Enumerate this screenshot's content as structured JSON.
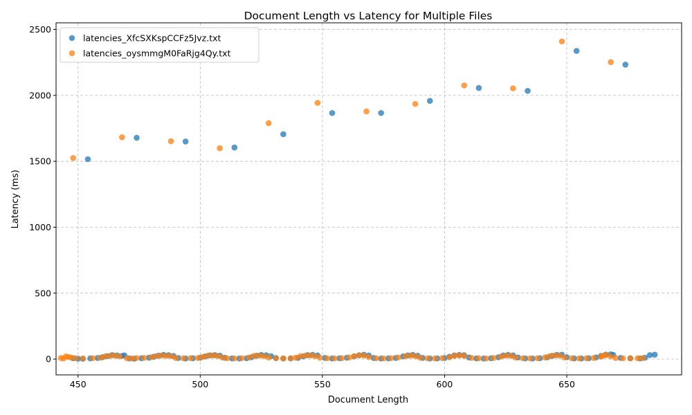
{
  "chart_data": {
    "type": "scatter",
    "title": "Document Length vs Latency for Multiple Files",
    "xlabel": "Document Length",
    "ylabel": "Latency (ms)",
    "xlim": [
      441,
      697
    ],
    "ylim": [
      -120,
      2550
    ],
    "x_ticks": [
      450,
      500,
      550,
      600,
      650
    ],
    "y_ticks": [
      0,
      500,
      1000,
      1500,
      2000,
      2500
    ],
    "grid": true,
    "legend_position": "top-left",
    "series": [
      {
        "name": "latencies_XfcSXKspCCFz5Jvz.txt",
        "color": "#1f77b4",
        "points": [
          [
            454,
            1516
          ],
          [
            474,
            1678
          ],
          [
            494,
            1650
          ],
          [
            514,
            1604
          ],
          [
            534,
            1705
          ],
          [
            554,
            1866
          ],
          [
            574,
            1866
          ],
          [
            594,
            1958
          ],
          [
            614,
            2056
          ],
          [
            634,
            2034
          ],
          [
            654,
            2337
          ],
          [
            674,
            2233
          ],
          [
            448,
            6
          ],
          [
            450,
            3
          ],
          [
            452,
            2
          ],
          [
            455,
            5
          ],
          [
            458,
            8
          ],
          [
            460,
            14
          ],
          [
            462,
            22
          ],
          [
            464,
            30
          ],
          [
            466,
            27
          ],
          [
            468,
            24
          ],
          [
            469,
            28
          ],
          [
            471,
            5
          ],
          [
            473,
            3
          ],
          [
            476,
            6
          ],
          [
            479,
            10
          ],
          [
            481,
            18
          ],
          [
            483,
            26
          ],
          [
            485,
            32
          ],
          [
            487,
            30
          ],
          [
            489,
            24
          ],
          [
            491,
            8
          ],
          [
            494,
            4
          ],
          [
            497,
            6
          ],
          [
            500,
            10
          ],
          [
            502,
            20
          ],
          [
            504,
            28
          ],
          [
            506,
            30
          ],
          [
            508,
            26
          ],
          [
            510,
            10
          ],
          [
            513,
            5
          ],
          [
            516,
            4
          ],
          [
            519,
            6
          ],
          [
            521,
            14
          ],
          [
            523,
            25
          ],
          [
            525,
            31
          ],
          [
            527,
            29
          ],
          [
            529,
            22
          ],
          [
            531,
            8
          ],
          [
            534,
            4
          ],
          [
            537,
            5
          ],
          [
            540,
            9
          ],
          [
            542,
            20
          ],
          [
            544,
            30
          ],
          [
            546,
            32
          ],
          [
            548,
            28
          ],
          [
            551,
            9
          ],
          [
            554,
            4
          ],
          [
            557,
            6
          ],
          [
            560,
            10
          ],
          [
            563,
            20
          ],
          [
            565,
            29
          ],
          [
            567,
            33
          ],
          [
            569,
            27
          ],
          [
            571,
            8
          ],
          [
            574,
            4
          ],
          [
            577,
            5
          ],
          [
            580,
            8
          ],
          [
            583,
            20
          ],
          [
            585,
            28
          ],
          [
            587,
            32
          ],
          [
            589,
            25
          ],
          [
            591,
            9
          ],
          [
            594,
            4
          ],
          [
            597,
            5
          ],
          [
            600,
            8
          ],
          [
            602,
            18
          ],
          [
            604,
            28
          ],
          [
            606,
            32
          ],
          [
            608,
            29
          ],
          [
            610,
            12
          ],
          [
            613,
            5
          ],
          [
            616,
            4
          ],
          [
            619,
            6
          ],
          [
            622,
            14
          ],
          [
            624,
            27
          ],
          [
            626,
            32
          ],
          [
            628,
            28
          ],
          [
            630,
            12
          ],
          [
            633,
            5
          ],
          [
            636,
            4
          ],
          [
            639,
            6
          ],
          [
            642,
            13
          ],
          [
            644,
            24
          ],
          [
            646,
            32
          ],
          [
            648,
            33
          ],
          [
            650,
            14
          ],
          [
            653,
            5
          ],
          [
            656,
            4
          ],
          [
            659,
            6
          ],
          [
            662,
            12
          ],
          [
            664,
            24
          ],
          [
            666,
            34
          ],
          [
            668,
            36
          ],
          [
            669,
            32
          ],
          [
            672,
            9
          ],
          [
            676,
            6
          ],
          [
            680,
            5
          ],
          [
            682,
            10
          ],
          [
            684,
            30
          ],
          [
            686,
            33
          ]
        ]
      },
      {
        "name": "latencies_oysmmgM0FaRjg4Qy.txt",
        "color": "#ff7f0e",
        "points": [
          [
            448,
            1525
          ],
          [
            468,
            1682
          ],
          [
            488,
            1652
          ],
          [
            508,
            1599
          ],
          [
            528,
            1789
          ],
          [
            548,
            1943
          ],
          [
            568,
            1878
          ],
          [
            588,
            1935
          ],
          [
            608,
            2075
          ],
          [
            628,
            2053
          ],
          [
            648,
            2409
          ],
          [
            668,
            2252
          ],
          [
            443,
            8
          ],
          [
            444,
            4
          ],
          [
            445,
            20
          ],
          [
            446,
            16
          ],
          [
            447,
            12
          ],
          [
            449,
            6
          ],
          [
            452,
            4
          ],
          [
            456,
            7
          ],
          [
            459,
            10
          ],
          [
            461,
            20
          ],
          [
            463,
            24
          ],
          [
            465,
            26
          ],
          [
            467,
            20
          ],
          [
            470,
            6
          ],
          [
            472,
            5
          ],
          [
            474,
            8
          ],
          [
            477,
            9
          ],
          [
            480,
            14
          ],
          [
            482,
            22
          ],
          [
            484,
            26
          ],
          [
            486,
            24
          ],
          [
            488,
            22
          ],
          [
            490,
            8
          ],
          [
            493,
            6
          ],
          [
            496,
            7
          ],
          [
            499,
            8
          ],
          [
            501,
            16
          ],
          [
            503,
            25
          ],
          [
            505,
            27
          ],
          [
            507,
            24
          ],
          [
            509,
            12
          ],
          [
            511,
            6
          ],
          [
            514,
            5
          ],
          [
            517,
            7
          ],
          [
            520,
            12
          ],
          [
            522,
            24
          ],
          [
            524,
            26
          ],
          [
            526,
            22
          ],
          [
            528,
            12
          ],
          [
            531,
            6
          ],
          [
            534,
            5
          ],
          [
            537,
            6
          ],
          [
            539,
            10
          ],
          [
            541,
            22
          ],
          [
            543,
            26
          ],
          [
            545,
            27
          ],
          [
            547,
            22
          ],
          [
            549,
            10
          ],
          [
            552,
            6
          ],
          [
            555,
            5
          ],
          [
            558,
            7
          ],
          [
            561,
            12
          ],
          [
            563,
            22
          ],
          [
            565,
            27
          ],
          [
            567,
            26
          ],
          [
            569,
            15
          ],
          [
            572,
            6
          ],
          [
            575,
            5
          ],
          [
            578,
            7
          ],
          [
            581,
            12
          ],
          [
            584,
            22
          ],
          [
            586,
            26
          ],
          [
            588,
            22
          ],
          [
            590,
            10
          ],
          [
            593,
            6
          ],
          [
            596,
            5
          ],
          [
            599,
            7
          ],
          [
            602,
            14
          ],
          [
            604,
            24
          ],
          [
            606,
            27
          ],
          [
            608,
            24
          ],
          [
            611,
            9
          ],
          [
            614,
            6
          ],
          [
            617,
            5
          ],
          [
            620,
            8
          ],
          [
            623,
            18
          ],
          [
            625,
            26
          ],
          [
            627,
            24
          ],
          [
            629,
            12
          ],
          [
            632,
            6
          ],
          [
            635,
            5
          ],
          [
            638,
            7
          ],
          [
            641,
            12
          ],
          [
            643,
            22
          ],
          [
            645,
            27
          ],
          [
            647,
            25
          ],
          [
            649,
            12
          ],
          [
            652,
            6
          ],
          [
            655,
            5
          ],
          [
            658,
            6
          ],
          [
            661,
            8
          ],
          [
            664,
            18
          ],
          [
            665,
            26
          ],
          [
            666,
            30
          ],
          [
            668,
            20
          ],
          [
            670,
            8
          ],
          [
            673,
            6
          ],
          [
            676,
            5
          ],
          [
            679,
            6
          ],
          [
            681,
            7
          ]
        ]
      }
    ]
  }
}
